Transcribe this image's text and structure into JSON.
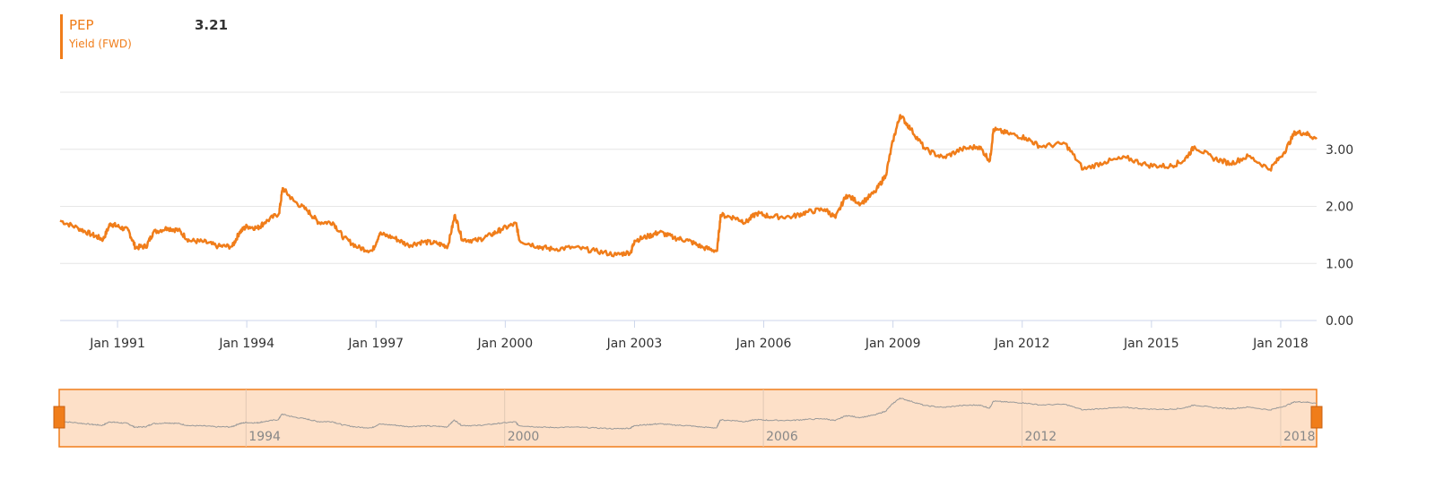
{
  "legend": {
    "symbol": "PEP",
    "value": "3.21",
    "metric": "Yield (FWD)"
  },
  "colors": {
    "series": "#f07d1a",
    "grid": "#e6e6e6",
    "axis_text": "#333333",
    "navigator_fill": "#fde0c8",
    "navigator_line": "#999999"
  },
  "chart_data": {
    "type": "line",
    "title": "",
    "xlabel": "",
    "ylabel": "",
    "ylim": [
      0,
      4
    ],
    "yticks": [
      "0.00",
      "1.00",
      "2.00",
      "3.00"
    ],
    "xlim": [
      "1989-09",
      "2018-11"
    ],
    "xticks": [
      {
        "date": "1991-01",
        "label": "Jan 1991"
      },
      {
        "date": "1994-01",
        "label": "Jan 1994"
      },
      {
        "date": "1997-01",
        "label": "Jan 1997"
      },
      {
        "date": "2000-01",
        "label": "Jan 2000"
      },
      {
        "date": "2003-01",
        "label": "Jan 2003"
      },
      {
        "date": "2006-01",
        "label": "Jan 2006"
      },
      {
        "date": "2009-01",
        "label": "Jan 2009"
      },
      {
        "date": "2012-01",
        "label": "Jan 2012"
      },
      {
        "date": "2015-01",
        "label": "Jan 2015"
      },
      {
        "date": "2018-01",
        "label": "Jan 2018"
      }
    ],
    "navigator_labels": [
      {
        "date": "1994-01",
        "label": "1994"
      },
      {
        "date": "2000-01",
        "label": "2000"
      },
      {
        "date": "2006-01",
        "label": "2006"
      },
      {
        "date": "2012-01",
        "label": "2012"
      },
      {
        "date": "2018-01",
        "label": "2018"
      }
    ],
    "grid": true,
    "series": [
      {
        "name": "PEP",
        "points": [
          [
            "1989-09",
            1.75
          ],
          [
            "1990-02",
            1.62
          ],
          [
            "1990-06",
            1.5
          ],
          [
            "1990-09",
            1.42
          ],
          [
            "1990-11",
            1.7
          ],
          [
            "1991-01",
            1.65
          ],
          [
            "1991-04",
            1.58
          ],
          [
            "1991-06",
            1.28
          ],
          [
            "1991-09",
            1.3
          ],
          [
            "1991-11",
            1.55
          ],
          [
            "1992-03",
            1.62
          ],
          [
            "1992-06",
            1.58
          ],
          [
            "1992-09",
            1.4
          ],
          [
            "1993-01",
            1.38
          ],
          [
            "1993-05",
            1.3
          ],
          [
            "1993-09",
            1.3
          ],
          [
            "1993-11",
            1.55
          ],
          [
            "1994-01",
            1.65
          ],
          [
            "1994-04",
            1.62
          ],
          [
            "1994-06",
            1.72
          ],
          [
            "1994-10",
            1.88
          ],
          [
            "1994-11",
            2.32
          ],
          [
            "1995-02",
            2.1
          ],
          [
            "1995-06",
            1.92
          ],
          [
            "1995-09",
            1.72
          ],
          [
            "1996-01",
            1.72
          ],
          [
            "1996-04",
            1.45
          ],
          [
            "1996-08",
            1.28
          ],
          [
            "1996-12",
            1.22
          ],
          [
            "1997-02",
            1.52
          ],
          [
            "1997-06",
            1.45
          ],
          [
            "1997-10",
            1.32
          ],
          [
            "1998-02",
            1.38
          ],
          [
            "1998-06",
            1.35
          ],
          [
            "1998-09",
            1.3
          ],
          [
            "1998-11",
            1.85
          ],
          [
            "1999-01",
            1.42
          ],
          [
            "1999-05",
            1.4
          ],
          [
            "1999-09",
            1.5
          ],
          [
            "1999-12",
            1.6
          ],
          [
            "2000-04",
            1.7
          ],
          [
            "2000-05",
            1.4
          ],
          [
            "2000-10",
            1.3
          ],
          [
            "2001-02",
            1.25
          ],
          [
            "2001-08",
            1.28
          ],
          [
            "2002-02",
            1.22
          ],
          [
            "2002-08",
            1.15
          ],
          [
            "2002-12",
            1.2
          ],
          [
            "2003-01",
            1.4
          ],
          [
            "2003-05",
            1.48
          ],
          [
            "2003-08",
            1.55
          ],
          [
            "2003-12",
            1.45
          ],
          [
            "2004-04",
            1.4
          ],
          [
            "2004-08",
            1.28
          ],
          [
            "2004-12",
            1.22
          ],
          [
            "2005-01",
            1.85
          ],
          [
            "2005-05",
            1.8
          ],
          [
            "2005-08",
            1.72
          ],
          [
            "2005-11",
            1.88
          ],
          [
            "2006-03",
            1.82
          ],
          [
            "2006-09",
            1.82
          ],
          [
            "2007-01",
            1.9
          ],
          [
            "2007-06",
            1.95
          ],
          [
            "2007-09",
            1.8
          ],
          [
            "2007-12",
            2.2
          ],
          [
            "2008-04",
            2.05
          ],
          [
            "2008-08",
            2.25
          ],
          [
            "2008-11",
            2.55
          ],
          [
            "2009-01",
            3.15
          ],
          [
            "2009-03",
            3.6
          ],
          [
            "2009-06",
            3.35
          ],
          [
            "2009-10",
            3.0
          ],
          [
            "2010-03",
            2.85
          ],
          [
            "2010-08",
            3.0
          ],
          [
            "2011-01",
            3.05
          ],
          [
            "2011-04",
            2.8
          ],
          [
            "2011-05",
            3.35
          ],
          [
            "2011-09",
            3.28
          ],
          [
            "2012-02",
            3.2
          ],
          [
            "2012-06",
            3.05
          ],
          [
            "2013-01",
            3.1
          ],
          [
            "2013-06",
            2.65
          ],
          [
            "2013-12",
            2.78
          ],
          [
            "2014-06",
            2.85
          ],
          [
            "2014-12",
            2.72
          ],
          [
            "2015-06",
            2.7
          ],
          [
            "2015-10",
            2.8
          ],
          [
            "2016-01",
            3.05
          ],
          [
            "2016-06",
            2.85
          ],
          [
            "2016-11",
            2.75
          ],
          [
            "2017-04",
            2.88
          ],
          [
            "2017-10",
            2.65
          ],
          [
            "2018-02",
            2.95
          ],
          [
            "2018-05",
            3.3
          ],
          [
            "2018-08",
            3.28
          ],
          [
            "2018-11",
            3.18
          ]
        ]
      }
    ]
  }
}
